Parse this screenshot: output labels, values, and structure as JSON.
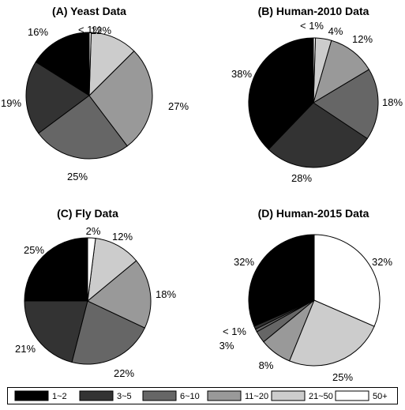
{
  "legend": {
    "entries": [
      {
        "label": "1~2",
        "color": "#000000"
      },
      {
        "label": "3~5",
        "color": "#333333"
      },
      {
        "label": "6~10",
        "color": "#666666"
      },
      {
        "label": "11~20",
        "color": "#999999"
      },
      {
        "label": "21~50",
        "color": "#cccccc"
      },
      {
        "label": "50+",
        "color": "#ffffff"
      }
    ],
    "placement": "bottom"
  },
  "chart_data": [
    {
      "type": "pie",
      "title": "(A) Yeast Data",
      "categories": [
        "1~2",
        "3~5",
        "6~10",
        "11~20",
        "21~50",
        "50+"
      ],
      "values": [
        16,
        19,
        25,
        27,
        12,
        0.5
      ],
      "labels": [
        "16%",
        "19%",
        "25%",
        "27%",
        "12%",
        "< 1%"
      ]
    },
    {
      "type": "pie",
      "title": "(B) Human-2010 Data",
      "categories": [
        "1~2",
        "3~5",
        "6~10",
        "11~20",
        "21~50",
        "50+"
      ],
      "values": [
        38,
        28,
        18,
        12,
        4,
        0.5
      ],
      "labels": [
        "38%",
        "28%",
        "18%",
        "12%",
        "4%",
        "< 1%"
      ]
    },
    {
      "type": "pie",
      "title": "(C) Fly Data",
      "categories": [
        "1~2",
        "3~5",
        "6~10",
        "11~20",
        "21~50",
        "50+"
      ],
      "values": [
        25,
        21,
        22,
        18,
        12,
        2
      ],
      "labels": [
        "25%",
        "21%",
        "22%",
        "18%",
        "12%",
        "2%"
      ]
    },
    {
      "type": "pie",
      "title": "(D) Human-2015 Data",
      "categories": [
        "1~2",
        "3~5",
        "6~10",
        "11~20",
        "21~50",
        "50+"
      ],
      "values": [
        32,
        0.8,
        0.7,
        3,
        8,
        25,
        32
      ],
      "slice_categories": [
        "1~2",
        "3~5",
        "6~10",
        "6~10",
        "11~20",
        "21~50",
        "50+"
      ],
      "labels": [
        "32%",
        "< 1%",
        "",
        "3%",
        "8%",
        "25%",
        "32%"
      ]
    }
  ]
}
